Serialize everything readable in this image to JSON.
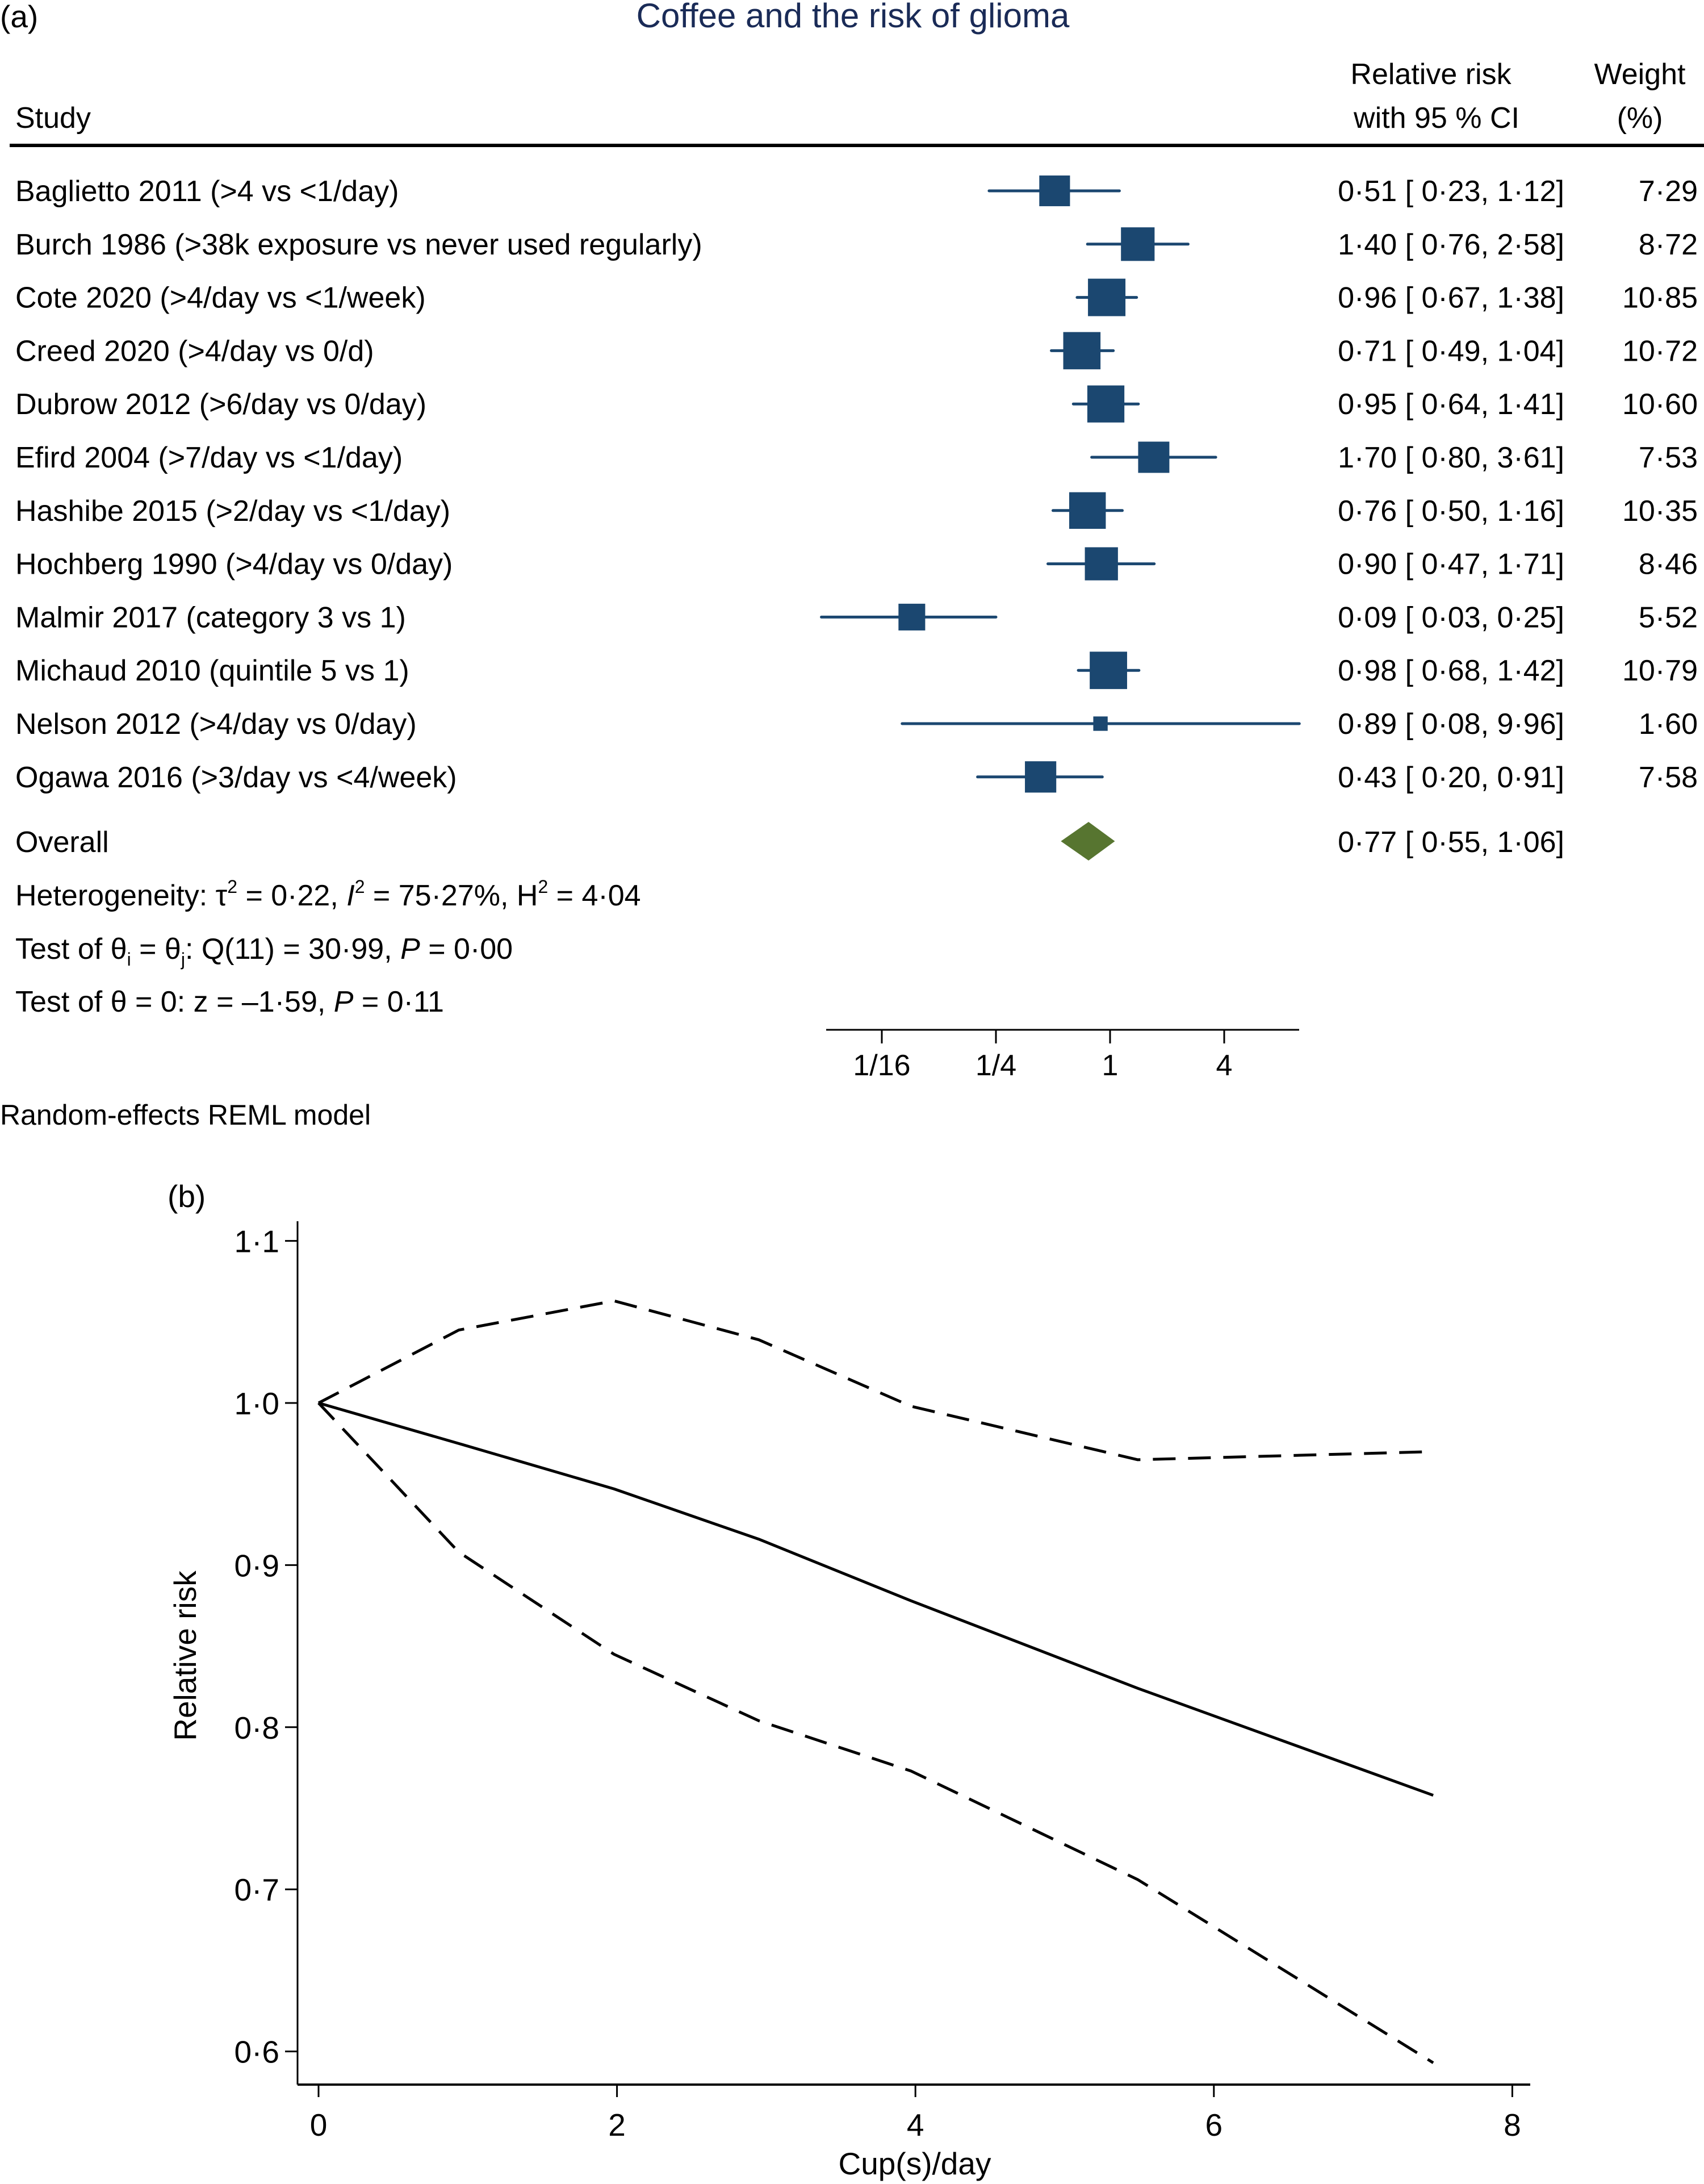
{
  "chart_data": [
    {
      "type": "forest",
      "panel_label": "(a)",
      "title": "Coffee and the risk of glioma",
      "header": {
        "study": "Study",
        "rr_line1": "Relative risk",
        "rr_line2": "with 95 % CI",
        "weight_line1": "Weight",
        "weight_line2": "(%)"
      },
      "studies": [
        {
          "label": "Baglietto 2011 (>4 vs <1/day)",
          "rr": 0.51,
          "lo": 0.23,
          "hi": 1.12,
          "weight": 7.29,
          "rr_text": "0·51",
          "lo_text": "0·23",
          "hi_text": "1·12",
          "weight_text": "7·29"
        },
        {
          "label": "Burch 1986 (>38k exposure vs never used regularly)",
          "rr": 1.4,
          "lo": 0.76,
          "hi": 2.58,
          "weight": 8.72,
          "rr_text": "1·40",
          "lo_text": "0·76",
          "hi_text": "2·58",
          "weight_text": "8·72"
        },
        {
          "label": "Cote 2020 (>4/day vs <1/week)",
          "rr": 0.96,
          "lo": 0.67,
          "hi": 1.38,
          "weight": 10.85,
          "rr_text": "0·96",
          "lo_text": "0·67",
          "hi_text": "1·38",
          "weight_text": "10·85"
        },
        {
          "label": "Creed 2020 (>4/day vs 0/d)",
          "rr": 0.71,
          "lo": 0.49,
          "hi": 1.04,
          "weight": 10.72,
          "rr_text": "0·71",
          "lo_text": "0·49",
          "hi_text": "1·04",
          "weight_text": "10·72"
        },
        {
          "label": "Dubrow 2012 (>6/day vs 0/day)",
          "rr": 0.95,
          "lo": 0.64,
          "hi": 1.41,
          "weight": 10.6,
          "rr_text": "0·95",
          "lo_text": "0·64",
          "hi_text": "1·41",
          "weight_text": "10·60"
        },
        {
          "label": "Efird 2004 (>7/day vs <1/day)",
          "rr": 1.7,
          "lo": 0.8,
          "hi": 3.61,
          "weight": 7.53,
          "rr_text": "1·70",
          "lo_text": "0·80",
          "hi_text": "3·61",
          "weight_text": "7·53"
        },
        {
          "label": "Hashibe 2015 (>2/day vs <1/day)",
          "rr": 0.76,
          "lo": 0.5,
          "hi": 1.16,
          "weight": 10.35,
          "rr_text": "0·76",
          "lo_text": "0·50",
          "hi_text": "1·16",
          "weight_text": "10·35"
        },
        {
          "label": "Hochberg 1990 (>4/day vs 0/day)",
          "rr": 0.9,
          "lo": 0.47,
          "hi": 1.71,
          "weight": 8.46,
          "rr_text": "0·90",
          "lo_text": "0·47",
          "hi_text": "1·71",
          "weight_text": "8·46"
        },
        {
          "label": "Malmir 2017 (category 3 vs 1)",
          "rr": 0.09,
          "lo": 0.03,
          "hi": 0.25,
          "weight": 5.52,
          "rr_text": "0·09",
          "lo_text": "0·03",
          "hi_text": "0·25",
          "weight_text": "5·52"
        },
        {
          "label": "Michaud 2010 (quintile 5 vs 1)",
          "rr": 0.98,
          "lo": 0.68,
          "hi": 1.42,
          "weight": 10.79,
          "rr_text": "0·98",
          "lo_text": "0·68",
          "hi_text": "1·42",
          "weight_text": "10·79"
        },
        {
          "label": "Nelson 2012 (>4/day vs 0/day)",
          "rr": 0.89,
          "lo": 0.08,
          "hi": 9.96,
          "weight": 1.6,
          "rr_text": "0·89",
          "lo_text": "0·08",
          "hi_text": "9·96",
          "weight_text": "1·60"
        },
        {
          "label": "Ogawa 2016 (>3/day vs <4/week)",
          "rr": 0.43,
          "lo": 0.2,
          "hi": 0.91,
          "weight": 7.58,
          "rr_text": "0·43",
          "lo_text": "0·20",
          "hi_text": "0·91",
          "weight_text": "7·58"
        }
      ],
      "overall": {
        "label": "Overall",
        "rr": 0.77,
        "lo": 0.55,
        "hi": 1.06,
        "rr_text": "0·77",
        "lo_text": "0·55",
        "hi_text": "1·06"
      },
      "heterogeneity": {
        "prefix": "Heterogeneity: ",
        "tau2": "0·22",
        "i2": "75·27%",
        "h2": "4·04"
      },
      "test_homogeneity": {
        "q_df": "11",
        "q": "30·99",
        "p": "0·00"
      },
      "test_effect": {
        "z": "–1·59",
        "p": "0·11"
      },
      "xaxis": {
        "scale": "log",
        "range": [
          0.03,
          9.96
        ],
        "ticks": [
          {
            "value": 0.0625,
            "label": "1/16"
          },
          {
            "value": 0.25,
            "label": "1/4"
          },
          {
            "value": 1,
            "label": "1"
          },
          {
            "value": 4,
            "label": "4"
          }
        ]
      },
      "footnote": "Random-effects REML model",
      "colors": {
        "marker": "#1b4770",
        "diamond": "#577530",
        "title": "#1a2b57"
      }
    },
    {
      "type": "line",
      "panel_label": "(b)",
      "xlabel": "Cup(s)/day",
      "ylabel": "Relative risk",
      "xlim": [
        0,
        8
      ],
      "ylim": [
        0.6,
        1.1
      ],
      "xticks": [
        {
          "value": 0,
          "label": "0"
        },
        {
          "value": 2,
          "label": "2"
        },
        {
          "value": 4,
          "label": "4"
        },
        {
          "value": 6,
          "label": "6"
        },
        {
          "value": 8,
          "label": "8"
        }
      ],
      "yticks": [
        {
          "value": 1.1,
          "label": "1·1"
        },
        {
          "value": 1.0,
          "label": "1·0"
        },
        {
          "value": 0.9,
          "label": "0·9"
        },
        {
          "value": 0.8,
          "label": "0·8"
        },
        {
          "value": 0.7,
          "label": "0·7"
        },
        {
          "value": 0.6,
          "label": "0·6"
        }
      ],
      "grid": false,
      "x": [
        0,
        0.94,
        1.98,
        2.95,
        3.97,
        5.49,
        7.47
      ],
      "series": [
        {
          "name": "Relative risk",
          "style": "solid",
          "values": [
            1.0,
            0.975,
            0.947,
            0.916,
            0.878,
            0.824,
            0.758
          ]
        },
        {
          "name": "Upper 95% CI",
          "style": "dashed",
          "values": [
            1.0,
            1.045,
            1.063,
            1.039,
            0.998,
            0.965,
            0.97
          ]
        },
        {
          "name": "Lower 95% CI",
          "style": "dashed",
          "values": [
            1.0,
            0.908,
            0.845,
            0.804,
            0.773,
            0.706,
            0.593
          ]
        }
      ]
    }
  ]
}
